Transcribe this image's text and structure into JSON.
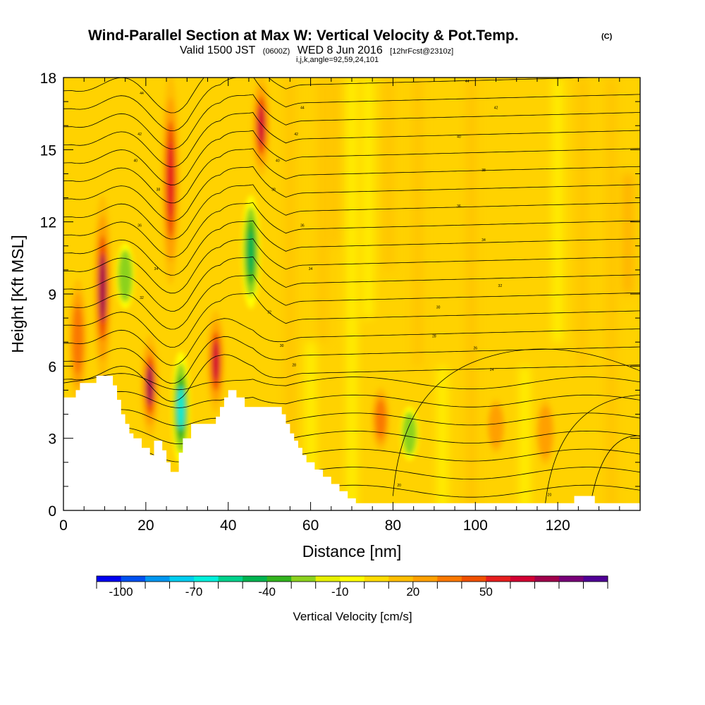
{
  "chart_data": {
    "type": "heatmap",
    "title": "Wind-Parallel Section at Max W: Vertical Velocity & Pot.Temp.",
    "title_mark": "(C)",
    "subtitle": {
      "prefix": "Valid 1500 JST",
      "zulu": "(0600Z)",
      "date": "WED 8 Jun 2016",
      "forecast": "[12hrFcst@2310z]"
    },
    "grid_info": "i,j,k,angle=92,59,24,101",
    "xlabel": "Distance [nm]",
    "ylabel": "Height [Kft MSL]",
    "xlim": [
      0,
      140
    ],
    "ylim": [
      0,
      18
    ],
    "x_ticks": [
      "0",
      "20",
      "40",
      "60",
      "80",
      "100",
      "120"
    ],
    "y_ticks": [
      "0",
      "3",
      "6",
      "9",
      "12",
      "15",
      "18"
    ],
    "colorbar": {
      "label": "Vertical Velocity [cm/s]",
      "tick_labels": [
        "-100",
        "-70",
        "-40",
        "-10",
        "20",
        "50"
      ],
      "colors": [
        "#0000f0",
        "#0050f0",
        "#0096f0",
        "#00cdf0",
        "#00f0dc",
        "#00d28c",
        "#00b450",
        "#32b41e",
        "#8cd21e",
        "#e6f000",
        "#ffff00",
        "#ffdc00",
        "#ffbe00",
        "#ffa000",
        "#fa7800",
        "#f05000",
        "#e61e1e",
        "#d20032",
        "#a0004b",
        "#780078",
        "#500096"
      ]
    },
    "updraft_cores": [
      {
        "x": 3.5,
        "z_bottom": 4.7,
        "z_top": 9.5,
        "max_cm_s": 35
      },
      {
        "x": 9.5,
        "z_bottom": 5.5,
        "z_top": 13,
        "max_cm_s": 70
      },
      {
        "x": 21,
        "z_bottom": 3.2,
        "z_top": 7.2,
        "max_cm_s": 70
      },
      {
        "x": 26,
        "z_bottom": 9.5,
        "z_top": 18,
        "max_cm_s": 55
      },
      {
        "x": 37,
        "z_bottom": 4.2,
        "z_top": 8.2,
        "max_cm_s": 60
      },
      {
        "x": 48,
        "z_bottom": 14,
        "z_top": 18,
        "max_cm_s": 60
      },
      {
        "x": 77,
        "z_bottom": 2.6,
        "z_top": 5.0,
        "max_cm_s": 35
      },
      {
        "x": 105,
        "z_bottom": 2.5,
        "z_top": 4.5,
        "max_cm_s": 28
      },
      {
        "x": 117,
        "z_bottom": 2.0,
        "z_top": 4.5,
        "max_cm_s": 28
      }
    ],
    "downdraft_cores": [
      {
        "x": 28.5,
        "z_bottom": 2.0,
        "z_top": 6.5,
        "min_cm_s": -70
      },
      {
        "x": 45.5,
        "z_bottom": 8.5,
        "z_top": 13,
        "min_cm_s": -45
      },
      {
        "x": 84,
        "z_bottom": 2.2,
        "z_top": 4.2,
        "min_cm_s": -25
      },
      {
        "x": 15,
        "z_bottom": 8.5,
        "z_top": 11,
        "min_cm_s": -30
      }
    ],
    "theta_contour_labels": [
      {
        "x": 19,
        "z": 17.3,
        "text": "44"
      },
      {
        "x": 18.5,
        "z": 15.6,
        "text": "42"
      },
      {
        "x": 17.5,
        "z": 14.5,
        "text": "40"
      },
      {
        "x": 23,
        "z": 13.3,
        "text": "38"
      },
      {
        "x": 18.5,
        "z": 11.8,
        "text": "36"
      },
      {
        "x": 22.5,
        "z": 10.0,
        "text": "34"
      },
      {
        "x": 19,
        "z": 8.8,
        "text": "32"
      },
      {
        "x": 58,
        "z": 16.7,
        "text": "44"
      },
      {
        "x": 56.5,
        "z": 15.6,
        "text": "42"
      },
      {
        "x": 52,
        "z": 14.5,
        "text": "40"
      },
      {
        "x": 51,
        "z": 13.3,
        "text": "38"
      },
      {
        "x": 58,
        "z": 11.8,
        "text": "36"
      },
      {
        "x": 60,
        "z": 10.0,
        "text": "34"
      },
      {
        "x": 50,
        "z": 8.2,
        "text": "32"
      },
      {
        "x": 53,
        "z": 6.8,
        "text": "30"
      },
      {
        "x": 56,
        "z": 6.0,
        "text": "28"
      },
      {
        "x": 98,
        "z": 17.8,
        "text": "44"
      },
      {
        "x": 105,
        "z": 16.7,
        "text": "42"
      },
      {
        "x": 96,
        "z": 15.5,
        "text": "40"
      },
      {
        "x": 102,
        "z": 14.1,
        "text": "38"
      },
      {
        "x": 96,
        "z": 12.6,
        "text": "36"
      },
      {
        "x": 102,
        "z": 11.2,
        "text": "34"
      },
      {
        "x": 106,
        "z": 9.3,
        "text": "32"
      },
      {
        "x": 91,
        "z": 8.4,
        "text": "30"
      },
      {
        "x": 90,
        "z": 7.2,
        "text": "28"
      },
      {
        "x": 100,
        "z": 6.7,
        "text": "26"
      },
      {
        "x": 104,
        "z": 5.8,
        "text": "24"
      },
      {
        "x": 81.5,
        "z": 1.0,
        "text": "20"
      },
      {
        "x": 118,
        "z": 0.6,
        "text": "20"
      }
    ]
  }
}
